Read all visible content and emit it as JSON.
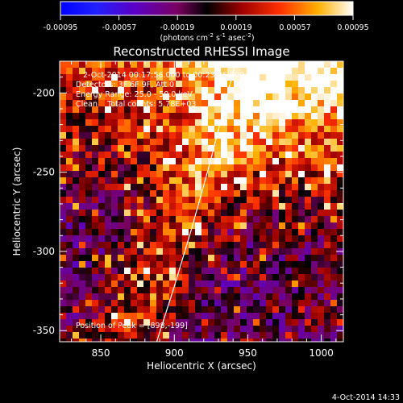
{
  "chart_data": {
    "type": "heatmap",
    "title": "Reconstructed RHESSI Image",
    "xlabel": "Heliocentric X (arcsec)",
    "ylabel": "Heliocentric Y (arcsec)",
    "xlim": [
      822,
      1015
    ],
    "ylim": [
      -357,
      -180
    ],
    "x_ticks": [
      850,
      900,
      950,
      1000
    ],
    "y_ticks": [
      -200,
      -250,
      -300,
      -350
    ],
    "x_tick_labels": [
      "850",
      "900",
      "950",
      "1000"
    ],
    "y_tick_labels": [
      "-200",
      "-250",
      "-300",
      "-350"
    ],
    "colorbar": {
      "min": -0.00095,
      "max": 0.00095,
      "tick_values": [
        -0.00095,
        -0.00057,
        -0.00019,
        0.00019,
        0.00057,
        0.00095
      ],
      "tick_labels": [
        "-0.00095",
        "-0.00057",
        "-0.00019",
        "0.00019",
        "0.00057",
        "0.00095"
      ],
      "unit_label": {
        "prefix": "(photons cm",
        "exp1": "-2",
        "mid1": " s",
        "exp2": "-1",
        "mid2": " asec",
        "exp3": "-2",
        "suffix": ")"
      }
    },
    "annotations": {
      "time_range": "2-Oct-2014 00:17:56.000 to 00:23:26.000",
      "detectors": "Detectors: 3F 6F 9F, Att 0",
      "energy": "Energy Range: 25.0 - 50.0 keV",
      "method": "Clean    Total counts: 5.78E+03",
      "peak": "Position of Peak = [898,-199]"
    },
    "limb_curve": [
      [
        888,
        -357
      ],
      [
        900,
        -322
      ],
      [
        912,
        -285
      ],
      [
        924,
        -245
      ],
      [
        935,
        -205
      ],
      [
        942,
        -180
      ]
    ],
    "grid": false,
    "legend": "none"
  },
  "footer": {
    "timestamp": "4-Oct-2014 14:33"
  }
}
